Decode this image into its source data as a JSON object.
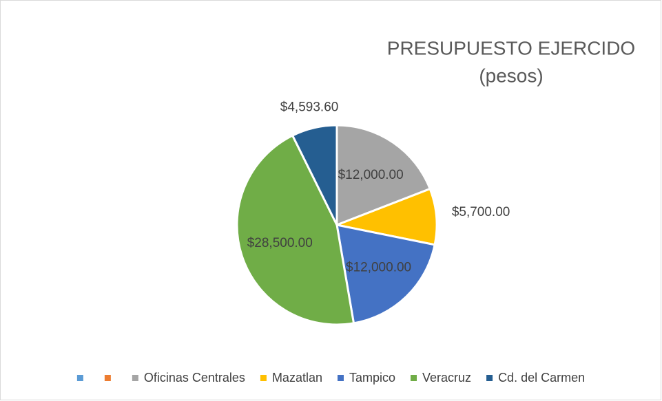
{
  "chart_data": {
    "type": "pie",
    "title": "PRESUPUESTO EJERCIDO",
    "subtitle": "(pesos)",
    "categories": [
      null,
      null,
      "Oficinas Centrales",
      "Mazatlan",
      "Tampico",
      "Veracruz",
      "Cd. del Carmen"
    ],
    "values": [
      null,
      null,
      12000,
      5700,
      12000,
      28500,
      4593.6
    ],
    "value_labels": [
      null,
      null,
      "$12,000.00",
      "$5,700.00",
      "$12,000.00",
      "$28,500.00",
      "$4,593.60"
    ],
    "colors": [
      "#5b9bd5",
      "#ed7d31",
      "#a5a5a5",
      "#ffc000",
      "#4472c4",
      "#70ad47",
      "#255e91"
    ],
    "legend": "bottom"
  }
}
